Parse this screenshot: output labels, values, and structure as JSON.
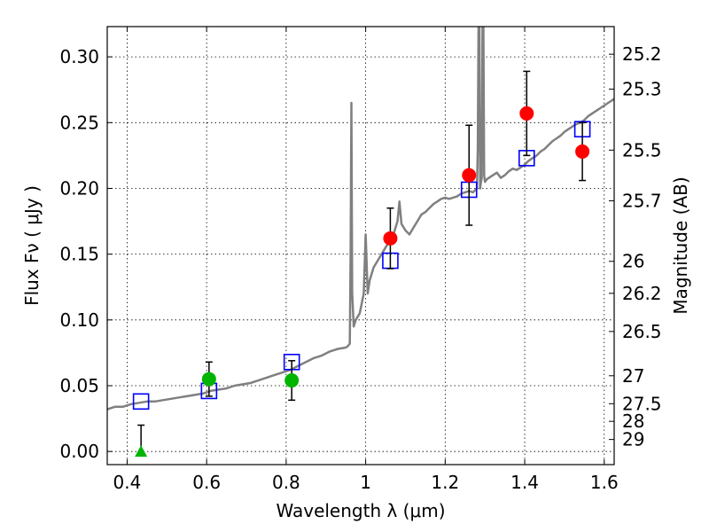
{
  "chart_data": {
    "type": "scatter",
    "xlabel": "Wavelength  λ (μm)",
    "ylabel": "Flux  Fν  ( μJy )",
    "ylabel_right": "Magnitude (AB)",
    "xlim": [
      0.35,
      1.625
    ],
    "ylim": [
      -0.01,
      0.323
    ],
    "grid": true,
    "x_ticks": [
      0.4,
      0.6,
      0.8,
      1.0,
      1.2,
      1.4,
      1.6
    ],
    "x_tick_labels": [
      "0.4",
      "0.6",
      "0.8",
      "1",
      "1.2",
      "1.4",
      "1.6"
    ],
    "y_ticks": [
      0.0,
      0.05,
      0.1,
      0.15,
      0.2,
      0.25,
      0.3
    ],
    "y_tick_labels": [
      "0.00",
      "0.05",
      "0.10",
      "0.15",
      "0.20",
      "0.25",
      "0.30"
    ],
    "right_ticks": [
      {
        "label": "25.2",
        "mag": 25.2
      },
      {
        "label": "25.3",
        "mag": 25.3
      },
      {
        "label": "25.5",
        "mag": 25.5
      },
      {
        "label": "25.7",
        "mag": 25.7
      },
      {
        "label": "26",
        "mag": 26.0
      },
      {
        "label": "26.2",
        "mag": 26.2
      },
      {
        "label": "26.5",
        "mag": 26.5
      },
      {
        "label": "27",
        "mag": 27.0
      },
      {
        "label": "27.5",
        "mag": 27.5
      },
      {
        "label": "28",
        "mag": 28.0
      },
      {
        "label": "29",
        "mag": 29.0
      }
    ],
    "series": [
      {
        "kind": "model-spectrum",
        "color": "#808080",
        "x": [
          0.35,
          0.37,
          0.39,
          0.41,
          0.43,
          0.45,
          0.47,
          0.49,
          0.51,
          0.53,
          0.55,
          0.57,
          0.59,
          0.61,
          0.63,
          0.65,
          0.67,
          0.69,
          0.71,
          0.73,
          0.75,
          0.77,
          0.79,
          0.81,
          0.83,
          0.85,
          0.87,
          0.89,
          0.91,
          0.93,
          0.95,
          0.955,
          0.96,
          0.962,
          0.964,
          0.966,
          0.97,
          0.975,
          0.985,
          0.995,
          1.0,
          1.005,
          1.01,
          1.02,
          1.03,
          1.04,
          1.05,
          1.06,
          1.07,
          1.08,
          1.085,
          1.09,
          1.1,
          1.11,
          1.12,
          1.13,
          1.14,
          1.15,
          1.16,
          1.17,
          1.18,
          1.19,
          1.2,
          1.21,
          1.22,
          1.23,
          1.24,
          1.25,
          1.26,
          1.27,
          1.28,
          1.282,
          1.284,
          1.286,
          1.288,
          1.29,
          1.292,
          1.294,
          1.296,
          1.298,
          1.3,
          1.305,
          1.31,
          1.32,
          1.33,
          1.34,
          1.35,
          1.36,
          1.37,
          1.38,
          1.39,
          1.4,
          1.41,
          1.42,
          1.43,
          1.44,
          1.45,
          1.46,
          1.47,
          1.48,
          1.49,
          1.5,
          1.51,
          1.52,
          1.53,
          1.54,
          1.55,
          1.56,
          1.57,
          1.58,
          1.59,
          1.6,
          1.61,
          1.625
        ],
        "y": [
          0.032,
          0.034,
          0.034,
          0.036,
          0.037,
          0.038,
          0.038,
          0.039,
          0.04,
          0.041,
          0.042,
          0.043,
          0.044,
          0.046,
          0.047,
          0.048,
          0.05,
          0.051,
          0.052,
          0.054,
          0.056,
          0.058,
          0.06,
          0.062,
          0.065,
          0.068,
          0.071,
          0.073,
          0.076,
          0.078,
          0.079,
          0.08,
          0.082,
          0.15,
          0.265,
          0.12,
          0.095,
          0.1,
          0.105,
          0.12,
          0.165,
          0.12,
          0.13,
          0.14,
          0.145,
          0.15,
          0.155,
          0.16,
          0.165,
          0.175,
          0.19,
          0.173,
          0.168,
          0.165,
          0.17,
          0.175,
          0.18,
          0.182,
          0.185,
          0.188,
          0.19,
          0.192,
          0.193,
          0.192,
          0.193,
          0.194,
          0.196,
          0.197,
          0.198,
          0.197,
          0.2,
          0.23,
          0.33,
          0.33,
          0.2,
          0.205,
          0.208,
          0.33,
          0.33,
          0.21,
          0.205,
          0.207,
          0.208,
          0.21,
          0.212,
          0.208,
          0.21,
          0.213,
          0.215,
          0.214,
          0.216,
          0.218,
          0.221,
          0.223,
          0.225,
          0.228,
          0.23,
          0.233,
          0.236,
          0.238,
          0.24,
          0.243,
          0.245,
          0.247,
          0.249,
          0.25,
          0.252,
          0.255,
          0.257,
          0.259,
          0.261,
          0.263,
          0.265,
          0.268
        ]
      },
      {
        "kind": "model-photometry",
        "marker": "open-square",
        "color": "#0000ff",
        "x": [
          0.435,
          0.606,
          0.814,
          1.062,
          1.26,
          1.405,
          1.545
        ],
        "y": [
          0.038,
          0.046,
          0.068,
          0.145,
          0.199,
          0.223,
          0.245
        ]
      },
      {
        "kind": "observed-optical",
        "marker": "filled-circle",
        "color": "#00b400",
        "x": [
          0.606,
          0.814
        ],
        "y": [
          0.055,
          0.054
        ],
        "yerr": [
          0.013,
          0.015
        ]
      },
      {
        "kind": "observed-nir",
        "marker": "filled-circle",
        "color": "#ff0000",
        "x": [
          1.062,
          1.26,
          1.405,
          1.545
        ],
        "y": [
          0.162,
          0.21,
          0.257,
          0.228
        ],
        "yerr": [
          0.023,
          0.038,
          0.032,
          0.022
        ]
      },
      {
        "kind": "upper-limit",
        "marker": "filled-triangle",
        "color": "#00b400",
        "x": [
          0.435
        ],
        "y": [
          0.0
        ],
        "err_top": [
          0.02
        ]
      }
    ]
  }
}
